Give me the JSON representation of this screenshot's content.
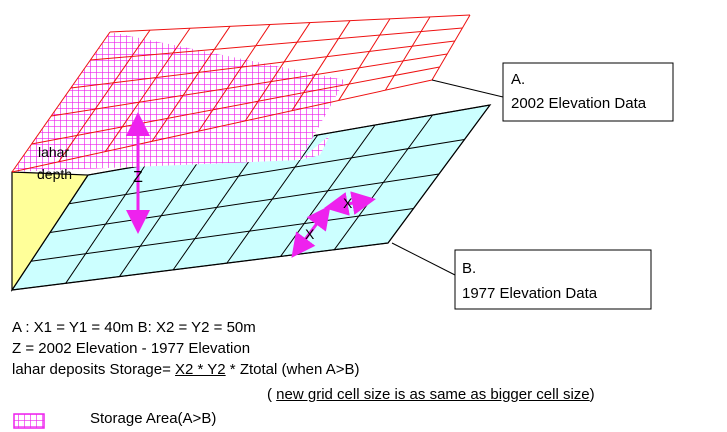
{
  "callout_a": {
    "line1": "A.",
    "line2": "2002 Elevation Data"
  },
  "callout_b": {
    "line1": "B.",
    "line2": "1977 Elevation Data"
  },
  "labels": {
    "lahar_word": "lahar",
    "depth_word": "depth",
    "z": "Z",
    "x": "X",
    "x_lower": "X"
  },
  "notes": {
    "line1": "A : X1 = Y1 = 40m B: X2 = Y2 = 50m",
    "line2": "Z = 2002 Elevation - 1977 Elevation",
    "line3_prefix": "lahar deposits Storage= ",
    "line3_formula": "X2 * Y2",
    "line3_suffix": " * Ztotal (when A>B)",
    "line4_open": "( ",
    "line4_underlined": "new grid cell size is as same as bigger cell size",
    "line4_close": ")"
  },
  "legend": {
    "label": "Storage Area(A>B)"
  },
  "colors": {
    "upper_grid": "#ee1111",
    "hatch": "#ee22ee",
    "lower_fill": "#ccffff",
    "side_fill": "#ffff99",
    "arrow": "#ee22ee"
  }
}
